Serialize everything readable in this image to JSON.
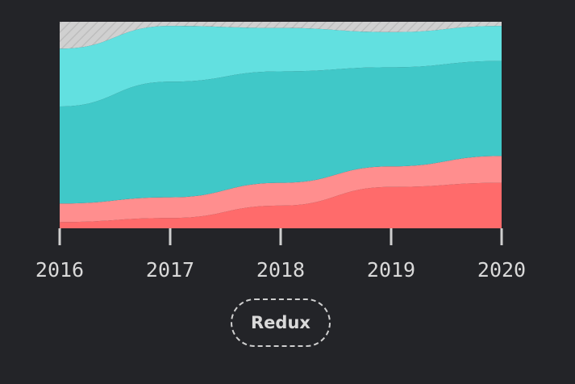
{
  "chart_data": {
    "type": "area",
    "stacked": "percent",
    "x": [
      2016,
      2017,
      2018,
      2019,
      2020
    ],
    "xtick_labels": [
      "2016",
      "2017",
      "2018",
      "2019",
      "2020"
    ],
    "ylim": [
      0,
      100
    ],
    "series": [
      {
        "values": [
          3,
          5,
          11,
          20,
          22
        ],
        "color": "#ff6b6b"
      },
      {
        "values": [
          9,
          10,
          11,
          10,
          13
        ],
        "color": "#ff8e8e"
      },
      {
        "values": [
          47,
          56,
          54,
          48,
          46
        ],
        "color": "#40c8c8"
      },
      {
        "values": [
          28,
          27,
          21,
          17,
          17
        ],
        "color": "#62e0e0"
      },
      {
        "values": [
          13,
          2,
          3,
          5,
          2
        ],
        "color": "#d0d0d0",
        "pattern": "hatched"
      }
    ],
    "grid": false,
    "legend": "none"
  },
  "filter": {
    "label": "Redux"
  }
}
